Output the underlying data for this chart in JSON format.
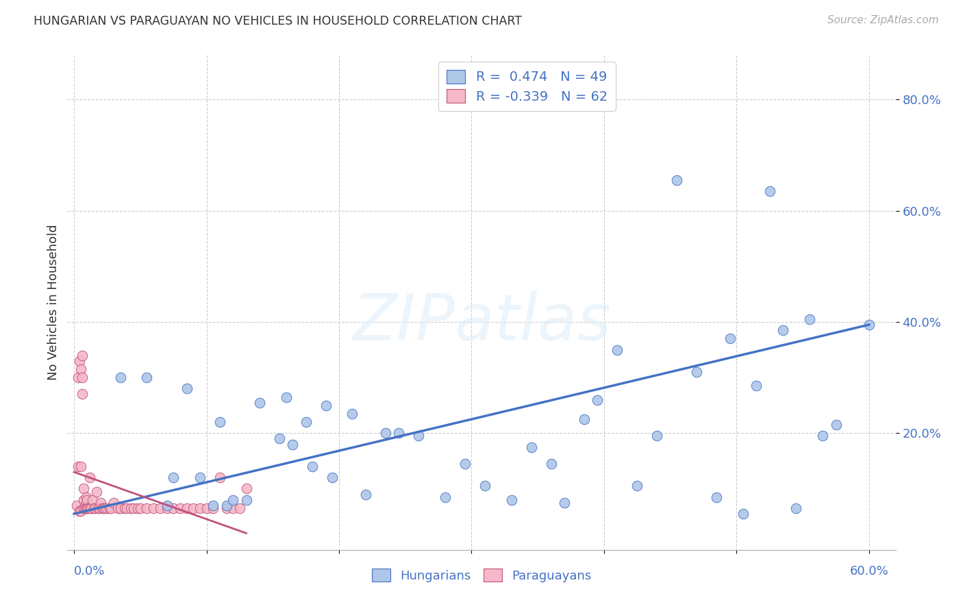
{
  "title": "HUNGARIAN VS PARAGUAYAN NO VEHICLES IN HOUSEHOLD CORRELATION CHART",
  "source": "Source: ZipAtlas.com",
  "ylabel": "No Vehicles in Household",
  "ytick_labels": [
    "20.0%",
    "40.0%",
    "60.0%",
    "80.0%"
  ],
  "ytick_values": [
    0.2,
    0.4,
    0.6,
    0.8
  ],
  "xlim": [
    -0.005,
    0.62
  ],
  "ylim": [
    -0.01,
    0.88
  ],
  "legend_blue_r": "R =  0.474",
  "legend_blue_n": "N = 49",
  "legend_pink_r": "R = -0.339",
  "legend_pink_n": "N = 62",
  "color_blue": "#aec6e8",
  "color_pink": "#f5b8c8",
  "color_blue_line": "#4472c4",
  "color_pink_line": "#c0507a",
  "color_blue_text": "#4472c4",
  "color_axis_text": "#4472c4",
  "background_color": "#ffffff",
  "watermark": "ZIPatlas",
  "blue_x": [
    0.035,
    0.055,
    0.07,
    0.075,
    0.085,
    0.095,
    0.105,
    0.11,
    0.115,
    0.12,
    0.13,
    0.14,
    0.155,
    0.16,
    0.165,
    0.175,
    0.18,
    0.19,
    0.195,
    0.21,
    0.22,
    0.235,
    0.245,
    0.26,
    0.28,
    0.295,
    0.31,
    0.33,
    0.345,
    0.36,
    0.37,
    0.385,
    0.395,
    0.41,
    0.425,
    0.44,
    0.455,
    0.47,
    0.485,
    0.495,
    0.505,
    0.515,
    0.525,
    0.535,
    0.545,
    0.555,
    0.565,
    0.575,
    0.6
  ],
  "blue_y": [
    0.3,
    0.3,
    0.07,
    0.12,
    0.28,
    0.12,
    0.07,
    0.22,
    0.07,
    0.08,
    0.08,
    0.255,
    0.19,
    0.265,
    0.18,
    0.22,
    0.14,
    0.25,
    0.12,
    0.235,
    0.09,
    0.2,
    0.2,
    0.195,
    0.085,
    0.145,
    0.105,
    0.08,
    0.175,
    0.145,
    0.075,
    0.225,
    0.26,
    0.35,
    0.105,
    0.195,
    0.655,
    0.31,
    0.085,
    0.37,
    0.055,
    0.285,
    0.635,
    0.385,
    0.065,
    0.405,
    0.195,
    0.215,
    0.395
  ],
  "pink_x": [
    0.002,
    0.003,
    0.003,
    0.004,
    0.004,
    0.005,
    0.005,
    0.005,
    0.006,
    0.006,
    0.006,
    0.007,
    0.007,
    0.007,
    0.008,
    0.008,
    0.009,
    0.009,
    0.01,
    0.01,
    0.011,
    0.012,
    0.012,
    0.013,
    0.014,
    0.015,
    0.016,
    0.017,
    0.018,
    0.019,
    0.02,
    0.021,
    0.022,
    0.023,
    0.025,
    0.027,
    0.028,
    0.03,
    0.033,
    0.035,
    0.038,
    0.04,
    0.043,
    0.045,
    0.048,
    0.05,
    0.055,
    0.06,
    0.065,
    0.07,
    0.075,
    0.08,
    0.085,
    0.09,
    0.095,
    0.1,
    0.105,
    0.11,
    0.115,
    0.12,
    0.125,
    0.13
  ],
  "pink_y": [
    0.07,
    0.14,
    0.3,
    0.06,
    0.33,
    0.06,
    0.14,
    0.315,
    0.27,
    0.3,
    0.34,
    0.08,
    0.1,
    0.065,
    0.07,
    0.065,
    0.065,
    0.085,
    0.08,
    0.065,
    0.065,
    0.065,
    0.12,
    0.065,
    0.08,
    0.065,
    0.065,
    0.095,
    0.065,
    0.065,
    0.075,
    0.065,
    0.065,
    0.065,
    0.065,
    0.065,
    0.065,
    0.075,
    0.065,
    0.065,
    0.065,
    0.065,
    0.065,
    0.065,
    0.065,
    0.065,
    0.065,
    0.065,
    0.065,
    0.065,
    0.065,
    0.065,
    0.065,
    0.065,
    0.065,
    0.065,
    0.065,
    0.12,
    0.065,
    0.065,
    0.065,
    0.1
  ],
  "blue_line_x": [
    0.0,
    0.6
  ],
  "blue_line_y": [
    0.055,
    0.395
  ],
  "pink_line_x": [
    0.0,
    0.13
  ],
  "pink_line_y": [
    0.13,
    0.02
  ]
}
